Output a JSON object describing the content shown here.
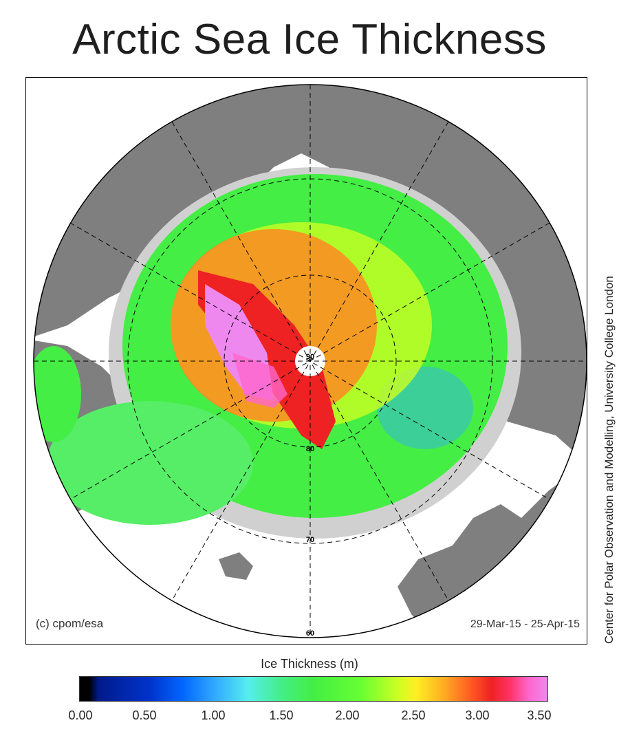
{
  "title": "Arctic Sea Ice Thickness",
  "map": {
    "credit": "(c) cpom/esa",
    "date_range": "29-Mar-15 - 25-Apr-15",
    "latitude_labels": [
      "80",
      "80",
      "70",
      "60"
    ],
    "pole_label": "90"
  },
  "side_credit": "Center for Polar Observation and Modelling, University College London",
  "colorbar": {
    "title": "Ice Thickness (m)",
    "ticks": [
      "0.00",
      "0.50",
      "1.00",
      "1.50",
      "2.00",
      "2.50",
      "3.00",
      "3.50"
    ],
    "min": 0.0,
    "max": 3.5,
    "colors": {
      "land": "#7f7f7f",
      "open_water": "#ffffff",
      "ice_no_data": "#d0d0d0",
      "thin": "#0033cc",
      "medium": "#44ee44",
      "thick": "#ee2222",
      "thickest": "#ee88ee"
    }
  }
}
